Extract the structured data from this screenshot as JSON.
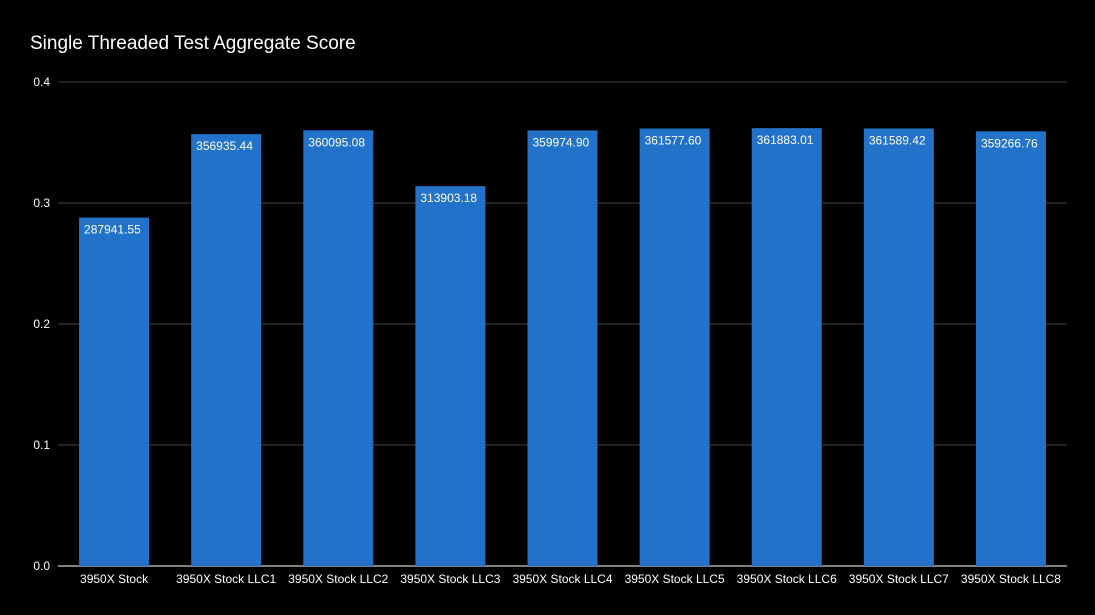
{
  "chart_data": {
    "type": "bar",
    "title": "Single Threaded Test Aggregate Score",
    "xlabel": "",
    "ylabel": "",
    "categories": [
      "3950X Stock",
      "3950X Stock LLC1",
      "3950X Stock LLC2",
      "3950X Stock LLC3",
      "3950X Stock LLC4",
      "3950X Stock LLC5",
      "3950X Stock LLC6",
      "3950X Stock LLC7",
      "3950X Stock LLC8"
    ],
    "values": [
      287941.55,
      356935.44,
      360095.08,
      313903.18,
      359974.9,
      361577.6,
      361883.01,
      361589.42,
      359266.76
    ],
    "data_labels": [
      "287941.55",
      "356935.44",
      "360095.08",
      "313903.18",
      "359974.90",
      "361577.60",
      "361883.01",
      "361589.42",
      "359266.76"
    ],
    "axis_scale_value": 1000000,
    "ylim": [
      0,
      0.4
    ],
    "yticks": [
      "0.0",
      "0.1",
      "0.2",
      "0.3",
      "0.4"
    ],
    "grid": true,
    "legend": "none",
    "colors": {
      "background": "#000000",
      "bar": "#2272c9",
      "text": "#ffffff",
      "grid": "#444444"
    }
  }
}
